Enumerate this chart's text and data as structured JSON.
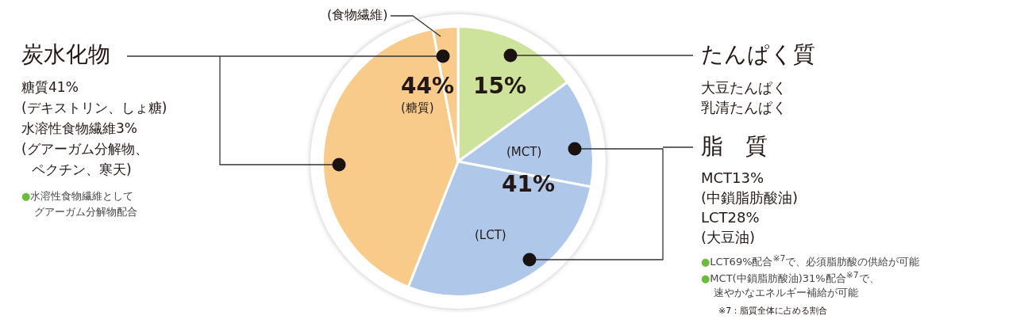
{
  "chart_data": {
    "type": "pie",
    "categories": [
      "たんぱく質",
      "(MCT)",
      "(LCT)",
      "(糖質)",
      "(食物繊維)"
    ],
    "values": [
      15,
      13,
      28,
      41,
      3
    ],
    "colors": [
      "#cde29b",
      "#afc7e8",
      "#afc7e8",
      "#f8cb8a",
      "#f8cb8a"
    ],
    "legend": false,
    "annotations": [
      "炭水化物",
      "糖質41%",
      "(デキストリン、しょ糖)",
      "水溶性食物繊維3%",
      "(グアーガム分解物、",
      "ペクチン、寒天)",
      "●水溶性食物繊維として",
      "グアーガム分解物配合",
      "脂　質",
      "MCT13%",
      "(中鎖脂肪酸油)",
      "LCT28%",
      "(大豆油)",
      "●LCT69%配合$^{※7}$で、必須脂肪酸の供給が可能",
      "●MCT(中鎖脂肪酸油)31%配合$^{※7}$で、",
      "速やかなエネルギー補給が可能",
      "※7：脂質全体に占める割合",
      "大豆たんぱく",
      "乳清たんぱく",
      "44%",
      "15%",
      "41%"
    ]
  }
}
